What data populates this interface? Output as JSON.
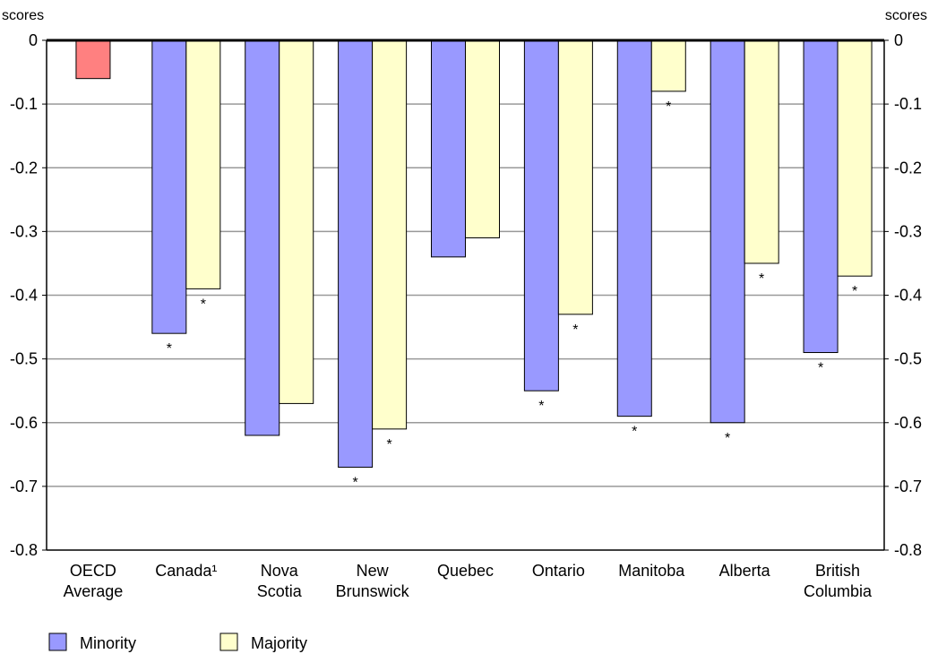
{
  "chart_data": {
    "type": "bar",
    "y_axis_left_label": "scores",
    "y_axis_right_label": "scores",
    "ylim": [
      -0.8,
      0
    ],
    "yticks": [
      0,
      -0.1,
      -0.2,
      -0.3,
      -0.4,
      -0.5,
      -0.6,
      -0.7,
      -0.8
    ],
    "grid": true,
    "categories": [
      {
        "lines": [
          "OECD",
          "Average"
        ]
      },
      {
        "lines": [
          "Canada¹"
        ]
      },
      {
        "lines": [
          "Nova",
          "Scotia"
        ]
      },
      {
        "lines": [
          "New",
          "Brunswick"
        ]
      },
      {
        "lines": [
          "Quebec"
        ]
      },
      {
        "lines": [
          "Ontario"
        ]
      },
      {
        "lines": [
          "Manitoba"
        ]
      },
      {
        "lines": [
          "Alberta"
        ]
      },
      {
        "lines": [
          "British",
          "Columbia"
        ]
      }
    ],
    "oecd_value": -0.06,
    "oecd_color": "#ff8080",
    "series": [
      {
        "name": "Minority",
        "color": "#9999ff",
        "values": [
          null,
          -0.46,
          -0.62,
          -0.67,
          -0.34,
          -0.55,
          -0.59,
          -0.6,
          -0.49
        ],
        "significant": [
          false,
          true,
          false,
          true,
          false,
          true,
          true,
          true,
          true
        ]
      },
      {
        "name": "Majority",
        "color": "#ffffcc",
        "values": [
          null,
          -0.39,
          -0.57,
          -0.61,
          -0.31,
          -0.43,
          -0.08,
          -0.35,
          -0.37
        ],
        "significant": [
          false,
          true,
          false,
          true,
          false,
          true,
          true,
          true,
          true
        ]
      }
    ],
    "significance_marker": "*",
    "legend_position": "bottom-left"
  }
}
